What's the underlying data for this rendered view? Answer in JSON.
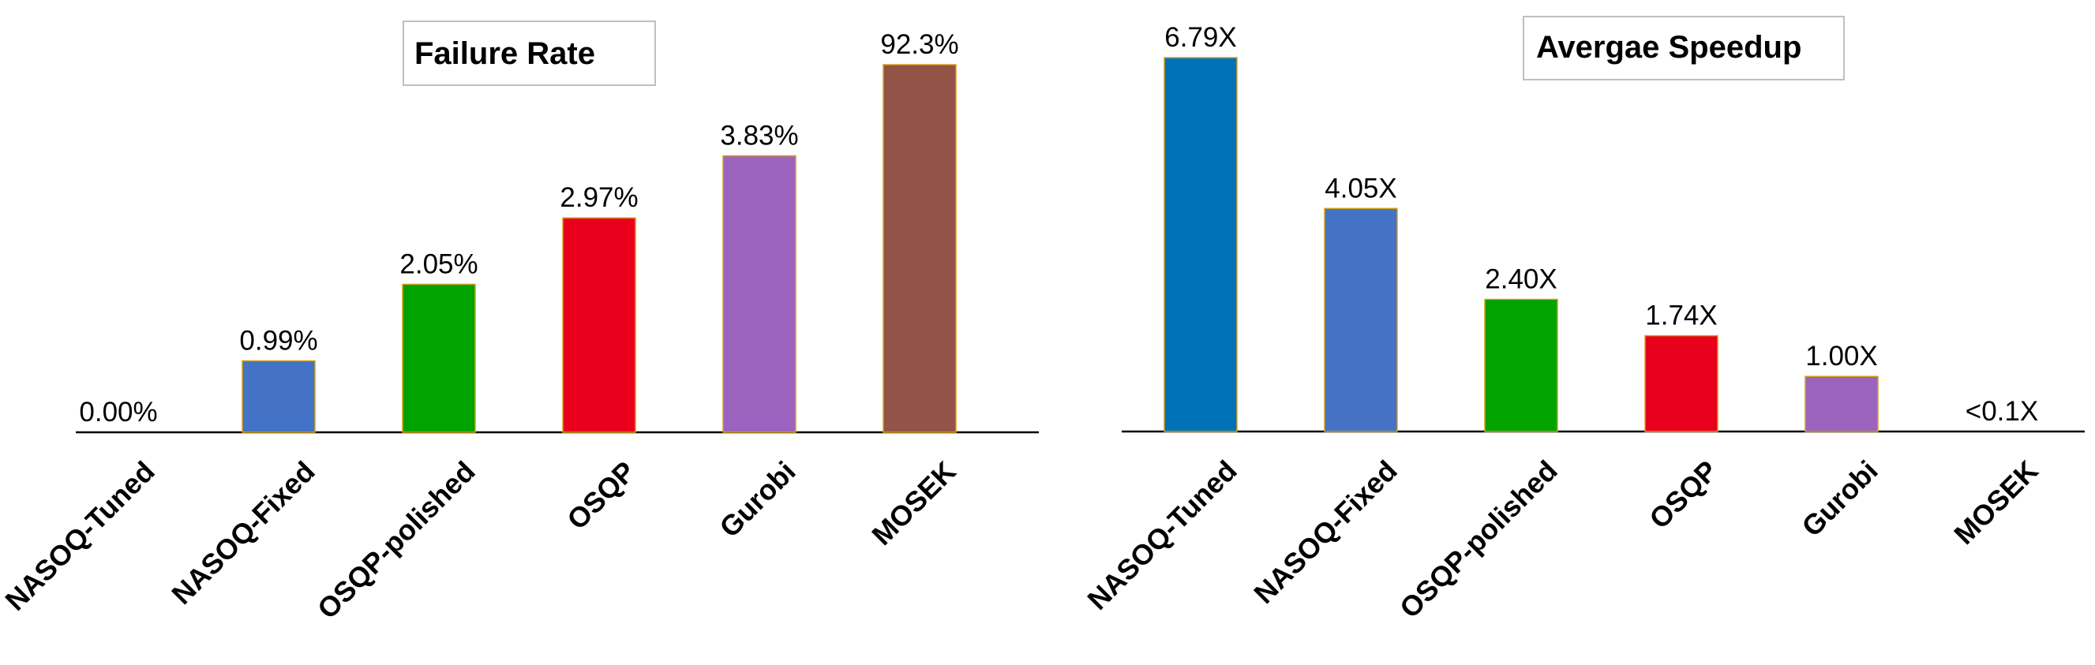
{
  "chart_data": [
    {
      "type": "bar",
      "title": "Failure Rate",
      "xlabel": "",
      "ylabel": "",
      "categories": [
        "NASOQ-Tuned",
        "NASOQ-Fixed",
        "OSQP-polished",
        "OSQP",
        "Gurobi",
        "MOSEK"
      ],
      "values": [
        0.0,
        0.99,
        2.05,
        2.97,
        3.83,
        92.3
      ],
      "value_labels": [
        "0.00%",
        "0.99%",
        "2.05%",
        "2.97%",
        "3.83%",
        "92.3%"
      ],
      "colors": [
        "#4472c4",
        "#4472c4",
        "#00a300",
        "#e8001c",
        "#9c63be",
        "#935346"
      ],
      "scale_note": "axis break: MOSEK bar not drawn to scale",
      "grid": false,
      "legend": "none"
    },
    {
      "type": "bar",
      "title": "Avergae Speedup",
      "xlabel": "",
      "ylabel": "",
      "categories": [
        "NASOQ-Tuned",
        "NASOQ-Fixed",
        "OSQP-polished",
        "OSQP",
        "Gurobi",
        "MOSEK"
      ],
      "values": [
        6.79,
        4.05,
        2.4,
        1.74,
        1.0,
        0.0
      ],
      "value_labels": [
        "6.79X",
        "4.05X",
        "2.40X",
        "1.74X",
        "1.00X",
        "<0.1X"
      ],
      "colors": [
        "#0072b8",
        "#4472c4",
        "#00a300",
        "#e8001c",
        "#9c63be",
        "#935346"
      ],
      "grid": false,
      "legend": "none"
    }
  ]
}
